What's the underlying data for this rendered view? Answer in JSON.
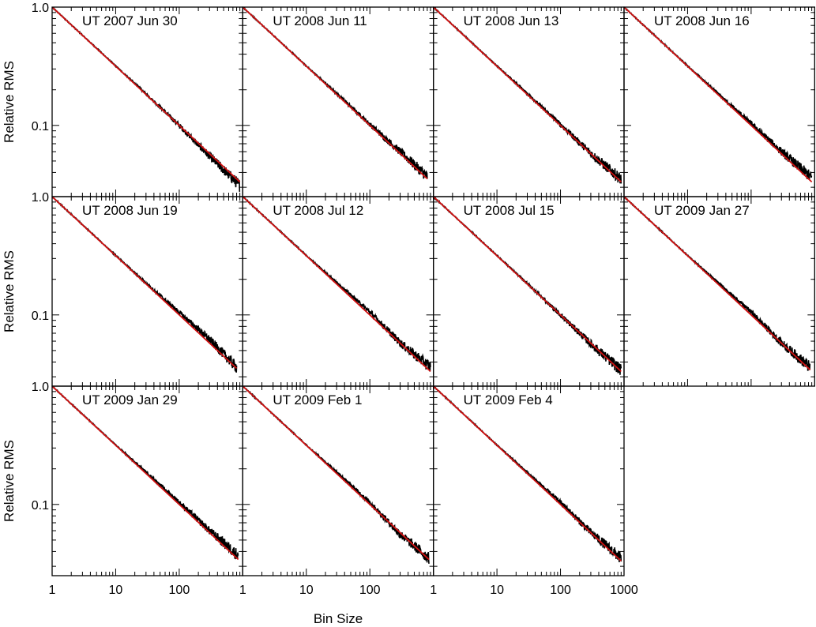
{
  "chart_data": {
    "type": "line",
    "layout": "small multiples, 3 rows x 4 columns, shared log-log axes",
    "xlabel": "Bin Size",
    "ylabel": "Relative RMS",
    "xscale": "log",
    "yscale": "log",
    "xlim": [
      1,
      1000
    ],
    "ylim": [
      0.025,
      1.0
    ],
    "xticks": [
      1,
      10,
      100,
      1000
    ],
    "xtick_labels": [
      "1",
      "10",
      "100",
      "1000"
    ],
    "yticks": [
      0.1,
      1.0
    ],
    "ytick_labels": [
      "0.1",
      "1.0"
    ],
    "grid": false,
    "legend": "none",
    "series_styles": {
      "measured": "#000000",
      "expected_white_noise": "#d01010"
    },
    "panels": [
      {
        "title": "UT 2007 Jun 30",
        "x_max": 900,
        "measured": {
          "x": [
            1,
            10,
            30,
            100,
            300,
            900
          ],
          "y": [
            1.0,
            0.318,
            0.185,
            0.1,
            0.055,
            0.031
          ]
        },
        "expected": {
          "x": [
            1,
            900
          ],
          "y": [
            1.0,
            0.0333
          ]
        }
      },
      {
        "title": "UT 2008 Jun 11",
        "x_max": 800,
        "measured": {
          "x": [
            1,
            10,
            30,
            100,
            300,
            800
          ],
          "y": [
            1.0,
            0.318,
            0.186,
            0.102,
            0.06,
            0.037
          ]
        },
        "expected": {
          "x": [
            1,
            800
          ],
          "y": [
            1.0,
            0.0354
          ]
        }
      },
      {
        "title": "UT 2008 Jun 13",
        "x_max": 900,
        "measured": {
          "x": [
            1,
            10,
            30,
            100,
            300,
            900
          ],
          "y": [
            1.0,
            0.318,
            0.186,
            0.102,
            0.058,
            0.035
          ]
        },
        "expected": {
          "x": [
            1,
            900
          ],
          "y": [
            1.0,
            0.0333
          ]
        }
      },
      {
        "title": "UT 2008 Jun 16",
        "x_max": 900,
        "measured": {
          "x": [
            1,
            10,
            30,
            100,
            300,
            900
          ],
          "y": [
            1.0,
            0.318,
            0.186,
            0.104,
            0.06,
            0.036
          ]
        },
        "expected": {
          "x": [
            1,
            900
          ],
          "y": [
            1.0,
            0.0333
          ]
        }
      },
      {
        "title": "UT 2008 Jun 19",
        "x_max": 800,
        "measured": {
          "x": [
            1,
            10,
            30,
            100,
            300,
            800
          ],
          "y": [
            1.0,
            0.318,
            0.186,
            0.105,
            0.062,
            0.036
          ]
        },
        "expected": {
          "x": [
            1,
            800
          ],
          "y": [
            1.0,
            0.0354
          ]
        }
      },
      {
        "title": "UT 2008 Jul 12",
        "x_max": 900,
        "measured": {
          "x": [
            1,
            10,
            30,
            100,
            300,
            900
          ],
          "y": [
            1.0,
            0.318,
            0.188,
            0.106,
            0.058,
            0.036
          ]
        },
        "expected": {
          "x": [
            1,
            900
          ],
          "y": [
            1.0,
            0.0333
          ]
        }
      },
      {
        "title": "UT 2008 Jul 15",
        "x_max": 900,
        "measured": {
          "x": [
            1,
            10,
            30,
            100,
            300,
            900
          ],
          "y": [
            1.0,
            0.318,
            0.184,
            0.1,
            0.057,
            0.034
          ]
        },
        "expected": {
          "x": [
            1,
            900
          ],
          "y": [
            1.0,
            0.0333
          ]
        }
      },
      {
        "title": "UT 2009 Jan 27",
        "x_max": 850,
        "measured": {
          "x": [
            1,
            10,
            30,
            100,
            300,
            850
          ],
          "y": [
            1.0,
            0.318,
            0.188,
            0.106,
            0.058,
            0.036
          ]
        },
        "expected": {
          "x": [
            1,
            850
          ],
          "y": [
            1.0,
            0.0343
          ]
        }
      },
      {
        "title": "UT 2009 Jan 29",
        "x_max": 850,
        "measured": {
          "x": [
            1,
            10,
            30,
            100,
            300,
            850
          ],
          "y": [
            1.0,
            0.318,
            0.188,
            0.104,
            0.06,
            0.037
          ]
        },
        "expected": {
          "x": [
            1,
            850
          ],
          "y": [
            1.0,
            0.0343
          ]
        }
      },
      {
        "title": "UT 2009 Feb 1",
        "x_max": 850,
        "measured": {
          "x": [
            1,
            10,
            30,
            100,
            300,
            850
          ],
          "y": [
            1.0,
            0.318,
            0.188,
            0.104,
            0.056,
            0.035
          ]
        },
        "expected": {
          "x": [
            1,
            850
          ],
          "y": [
            1.0,
            0.0343
          ]
        }
      },
      {
        "title": "UT 2009 Feb 4",
        "x_max": 900,
        "measured": {
          "x": [
            1,
            10,
            30,
            100,
            300,
            900
          ],
          "y": [
            1.0,
            0.318,
            0.186,
            0.104,
            0.058,
            0.035
          ]
        },
        "expected": {
          "x": [
            1,
            900
          ],
          "y": [
            1.0,
            0.0333
          ]
        }
      }
    ]
  }
}
